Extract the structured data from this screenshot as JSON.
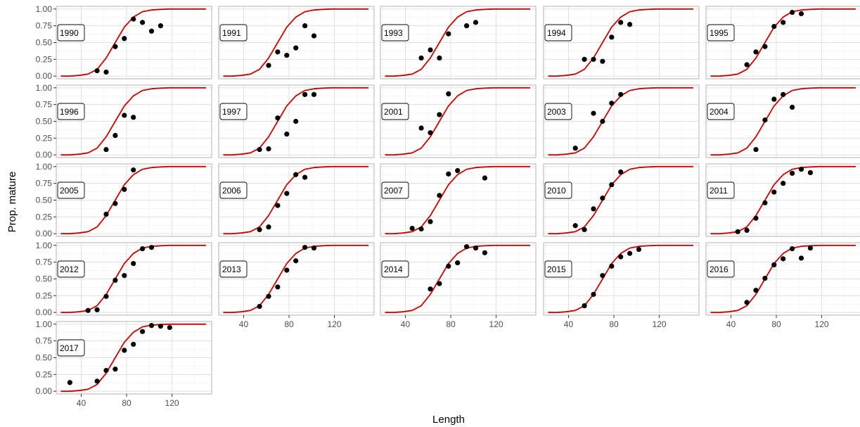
{
  "chart_data": {
    "type": "scatter",
    "xlabel": "Length",
    "ylabel": "Prop. mature",
    "xlim": [
      18,
      155
    ],
    "ylim": [
      -0.04,
      1.04
    ],
    "x_ticks": [
      40,
      80,
      120
    ],
    "y_ticks": [
      0.0,
      0.25,
      0.5,
      0.75,
      1.0
    ],
    "y_tick_labels": [
      "0.00",
      "0.25",
      "0.50",
      "0.75",
      "1.00"
    ],
    "grid": true,
    "colors": {
      "points": "#000000",
      "curve": "#cc0000",
      "panel_border": "#b3b3b3",
      "grid_major": "#e0e0e0",
      "grid_minor": "#f0f0f0"
    },
    "fitted_curve": {
      "x": [
        22,
        30,
        38,
        46,
        54,
        62,
        70,
        78,
        86,
        94,
        102,
        110,
        118,
        126,
        134,
        142,
        150
      ],
      "y": [
        0.0,
        0.0,
        0.01,
        0.03,
        0.1,
        0.27,
        0.5,
        0.73,
        0.88,
        0.96,
        0.985,
        0.995,
        1.0,
        1.0,
        1.0,
        1.0,
        1.0
      ]
    },
    "panels": [
      {
        "label": "1990",
        "x": [
          54,
          62,
          70,
          78,
          86,
          94,
          102,
          110
        ],
        "y": [
          0.08,
          0.06,
          0.44,
          0.56,
          0.85,
          0.8,
          0.67,
          0.75
        ]
      },
      {
        "label": "1991",
        "x": [
          62,
          70,
          78,
          86,
          94,
          102
        ],
        "y": [
          0.16,
          0.36,
          0.31,
          0.42,
          0.75,
          0.6
        ]
      },
      {
        "label": "1993",
        "x": [
          54,
          62,
          70,
          78,
          94,
          102
        ],
        "y": [
          0.27,
          0.39,
          0.27,
          0.63,
          0.75,
          0.8
        ]
      },
      {
        "label": "1994",
        "x": [
          54,
          62,
          70,
          78,
          86,
          94
        ],
        "y": [
          0.25,
          0.25,
          0.22,
          0.58,
          0.8,
          0.77
        ]
      },
      {
        "label": "1995",
        "x": [
          54,
          62,
          70,
          78,
          86,
          94,
          102
        ],
        "y": [
          0.17,
          0.36,
          0.44,
          0.74,
          0.8,
          0.95,
          0.93
        ]
      },
      {
        "label": "1996",
        "x": [
          62,
          70,
          78,
          86
        ],
        "y": [
          0.08,
          0.29,
          0.59,
          0.56
        ]
      },
      {
        "label": "1997",
        "x": [
          54,
          62,
          70,
          78,
          86,
          94,
          102
        ],
        "y": [
          0.08,
          0.09,
          0.55,
          0.31,
          0.5,
          0.9,
          0.9
        ]
      },
      {
        "label": "2001",
        "x": [
          54,
          62,
          70,
          78
        ],
        "y": [
          0.4,
          0.33,
          0.6,
          0.91
        ]
      },
      {
        "label": "2003",
        "x": [
          46,
          62,
          70,
          78,
          86
        ],
        "y": [
          0.1,
          0.62,
          0.5,
          0.77,
          0.9
        ]
      },
      {
        "label": "2004",
        "x": [
          62,
          70,
          78,
          86,
          94
        ],
        "y": [
          0.08,
          0.52,
          0.83,
          0.9,
          0.71
        ]
      },
      {
        "label": "2005",
        "x": [
          62,
          70,
          78,
          86
        ],
        "y": [
          0.29,
          0.45,
          0.66,
          0.95
        ]
      },
      {
        "label": "2006",
        "x": [
          54,
          62,
          70,
          78,
          86,
          94
        ],
        "y": [
          0.06,
          0.1,
          0.42,
          0.6,
          0.88,
          0.84
        ]
      },
      {
        "label": "2007",
        "x": [
          46,
          54,
          62,
          70,
          78,
          86,
          110
        ],
        "y": [
          0.08,
          0.07,
          0.18,
          0.57,
          0.89,
          0.94,
          0.83
        ]
      },
      {
        "label": "2010",
        "x": [
          46,
          54,
          62,
          70,
          78,
          86
        ],
        "y": [
          0.12,
          0.06,
          0.37,
          0.53,
          0.73,
          0.92
        ]
      },
      {
        "label": "2011",
        "x": [
          46,
          54,
          62,
          70,
          78,
          86,
          94,
          102,
          110
        ],
        "y": [
          0.03,
          0.05,
          0.23,
          0.46,
          0.62,
          0.75,
          0.9,
          0.96,
          0.91
        ]
      },
      {
        "label": "2012",
        "x": [
          46,
          54,
          62,
          70,
          78,
          86,
          94,
          102
        ],
        "y": [
          0.03,
          0.04,
          0.24,
          0.48,
          0.55,
          0.73,
          0.95,
          0.97
        ]
      },
      {
        "label": "2013",
        "x": [
          54,
          62,
          70,
          78,
          86,
          94,
          102
        ],
        "y": [
          0.09,
          0.24,
          0.38,
          0.63,
          0.77,
          0.97,
          0.96
        ]
      },
      {
        "label": "2014",
        "x": [
          62,
          70,
          78,
          86,
          94,
          102,
          110
        ],
        "y": [
          0.35,
          0.43,
          0.69,
          0.74,
          0.98,
          0.96,
          0.89
        ]
      },
      {
        "label": "2015",
        "x": [
          54,
          62,
          70,
          78,
          86,
          94,
          102
        ],
        "y": [
          0.1,
          0.27,
          0.55,
          0.69,
          0.83,
          0.88,
          0.94
        ]
      },
      {
        "label": "2016",
        "x": [
          54,
          62,
          70,
          78,
          86,
          94,
          102,
          110
        ],
        "y": [
          0.15,
          0.33,
          0.51,
          0.71,
          0.8,
          0.95,
          0.81,
          0.96
        ]
      },
      {
        "label": "2017",
        "x": [
          30,
          54,
          62,
          70,
          78,
          86,
          94,
          102,
          110,
          118
        ],
        "y": [
          0.13,
          0.15,
          0.31,
          0.33,
          0.61,
          0.7,
          0.89,
          0.98,
          0.97,
          0.95
        ]
      }
    ]
  }
}
